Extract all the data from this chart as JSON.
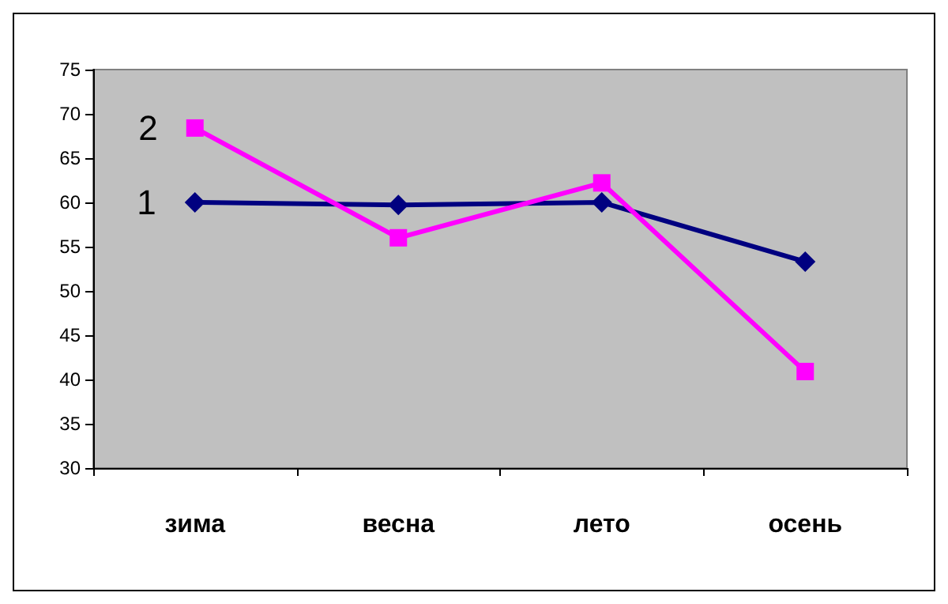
{
  "chart_data": {
    "type": "line",
    "categories": [
      "зима",
      "весна",
      "лето",
      "осень"
    ],
    "series": [
      {
        "name": "1",
        "color": "#000080",
        "marker": "diamond",
        "values": [
          60,
          59.7,
          60,
          53.3
        ]
      },
      {
        "name": "2",
        "color": "#ff00ff",
        "marker": "square",
        "values": [
          68.4,
          56,
          62.2,
          40.9
        ]
      }
    ],
    "ylim": [
      30,
      75
    ],
    "yticks": [
      30,
      35,
      40,
      45,
      50,
      55,
      60,
      65,
      70,
      75
    ],
    "grid": false,
    "legend": false
  }
}
